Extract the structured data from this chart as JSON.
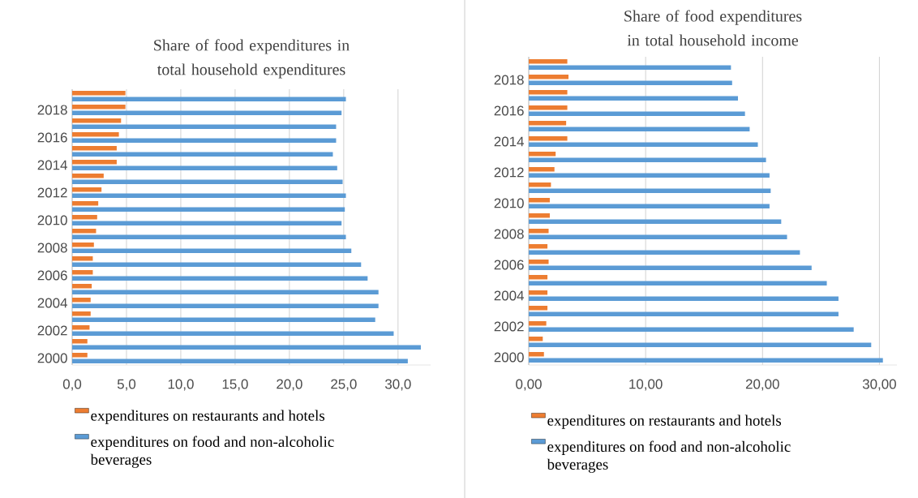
{
  "chart_data": [
    {
      "type": "bar",
      "orientation": "horizontal",
      "title": "Share of food expenditures  in total household expenditures",
      "categories": [
        null,
        "2018",
        null,
        "2016",
        null,
        "2014",
        null,
        "2012",
        null,
        "2010",
        null,
        "2008",
        null,
        "2006",
        null,
        "2004",
        null,
        "2002",
        null,
        "2000"
      ],
      "series": [
        {
          "name": "expenditures on restaurants and hotels",
          "color": "#ed7d31",
          "values": [
            4.9,
            4.9,
            4.5,
            4.3,
            4.1,
            4.1,
            2.9,
            2.7,
            2.4,
            2.3,
            2.2,
            2.0,
            1.9,
            1.9,
            1.8,
            1.7,
            1.7,
            1.6,
            1.4,
            1.4
          ]
        },
        {
          "name": "expenditures on food and non-alcoholic beverages",
          "color": "#5b9bd5",
          "values": [
            25.2,
            24.8,
            24.3,
            24.3,
            24.0,
            24.4,
            24.9,
            25.2,
            25.1,
            24.8,
            25.2,
            25.7,
            26.6,
            27.2,
            28.2,
            28.2,
            27.9,
            29.6,
            32.1,
            30.9
          ]
        }
      ],
      "xlim": [
        0,
        33
      ],
      "xticks": [
        {
          "value": 0,
          "label": "0,0"
        },
        {
          "value": 5,
          "label": "5,0"
        },
        {
          "value": 10,
          "label": "10,0"
        },
        {
          "value": 15,
          "label": "15,0"
        },
        {
          "value": 20,
          "label": "20,0"
        },
        {
          "value": 25,
          "label": "25,0"
        },
        {
          "value": 30,
          "label": "30,0"
        }
      ],
      "grid": "x",
      "legend": "bottom"
    },
    {
      "type": "bar",
      "orientation": "horizontal",
      "title": "Share of food expenditures in total household income",
      "categories": [
        null,
        "2018",
        null,
        "2016",
        null,
        "2014",
        null,
        "2012",
        null,
        "2010",
        null,
        "2008",
        null,
        "2006",
        null,
        "2004",
        null,
        "2002",
        null,
        "2000"
      ],
      "series": [
        {
          "name": "expenditures on restaurants and hotels",
          "color": "#ed7d31",
          "values": [
            3.3,
            3.4,
            3.3,
            3.3,
            3.2,
            3.3,
            2.3,
            2.2,
            1.9,
            1.8,
            1.8,
            1.7,
            1.6,
            1.7,
            1.6,
            1.6,
            1.6,
            1.5,
            1.2,
            1.3
          ]
        },
        {
          "name": "expenditures on food and non-alcoholic beverages",
          "color": "#5b9bd5",
          "values": [
            17.3,
            17.4,
            17.9,
            18.5,
            18.9,
            19.6,
            20.3,
            20.6,
            20.7,
            20.6,
            21.6,
            22.1,
            23.2,
            24.2,
            25.5,
            26.5,
            26.5,
            27.8,
            29.3,
            30.3
          ]
        }
      ],
      "xlim": [
        0,
        31.5
      ],
      "xticks": [
        {
          "value": 0,
          "label": "0,00"
        },
        {
          "value": 10,
          "label": "10,00"
        },
        {
          "value": 20,
          "label": "20,00"
        },
        {
          "value": 30,
          "label": "30,00"
        }
      ],
      "grid": "x",
      "legend": "bottom"
    }
  ]
}
